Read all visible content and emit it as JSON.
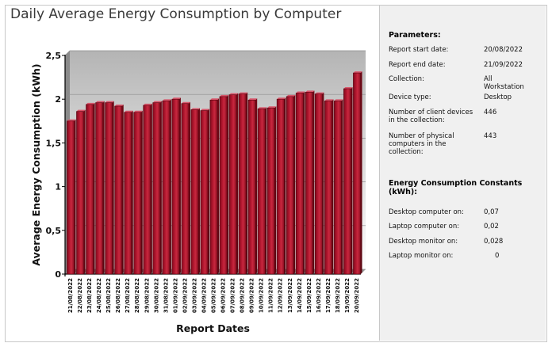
{
  "chart_data": {
    "type": "bar",
    "title": "Daily Average Energy Consumption by Computer",
    "xlabel": "Report Dates",
    "ylabel": "Average Energy Consumption (kWh)",
    "ylim": [
      0,
      2.5
    ],
    "yticks": [
      "0",
      "0,5",
      "1",
      "1,5",
      "2",
      "2,5"
    ],
    "grid": true,
    "categories": [
      "21/08/2022",
      "22/08/2022",
      "23/08/2022",
      "24/08/2022",
      "25/08/2022",
      "26/08/2022",
      "27/08/2022",
      "28/08/2022",
      "29/08/2022",
      "30/08/2022",
      "31/08/2022",
      "01/09/2022",
      "02/09/2022",
      "03/09/2022",
      "04/09/2022",
      "05/09/2022",
      "06/09/2022",
      "07/09/2022",
      "08/09/2022",
      "09/09/2022",
      "10/09/2022",
      "11/09/2022",
      "12/09/2022",
      "13/09/2022",
      "14/09/2022",
      "15/09/2022",
      "16/09/2022",
      "17/09/2022",
      "18/09/2022",
      "19/09/2022",
      "20/09/2022"
    ],
    "values": [
      1.75,
      1.86,
      1.94,
      1.96,
      1.96,
      1.92,
      1.85,
      1.85,
      1.93,
      1.96,
      1.98,
      2.0,
      1.95,
      1.88,
      1.87,
      1.99,
      2.03,
      2.05,
      2.06,
      1.99,
      1.89,
      1.9,
      2.0,
      2.03,
      2.07,
      2.08,
      2.06,
      1.98,
      1.98,
      2.12,
      2.3
    ],
    "bar_color": "#b0162e",
    "plot_bg_color": "#c8c8c8"
  },
  "panel": {
    "parameters_heading": "Parameters:",
    "parameters": [
      {
        "label": "Report start date:",
        "value": "20/08/2022"
      },
      {
        "label": "Report end date:",
        "value": "21/09/2022"
      },
      {
        "label": "Collection:",
        "value": "All Workstation"
      },
      {
        "label": "Device type:",
        "value": "Desktop"
      },
      {
        "label": "Number of client devices in the collection:",
        "value": "446"
      },
      {
        "label": "Number of physical computers in the collection:",
        "value": "443"
      }
    ],
    "constants_heading": "Energy Consumption Constants (kWh):",
    "constants": [
      {
        "label": "Desktop computer on:",
        "value": "0,07"
      },
      {
        "label": "Laptop computer on:",
        "value": "0,02"
      },
      {
        "label": "Desktop monitor on:",
        "value": "0,028"
      },
      {
        "label": "Laptop monitor on:",
        "value": "0"
      }
    ]
  }
}
